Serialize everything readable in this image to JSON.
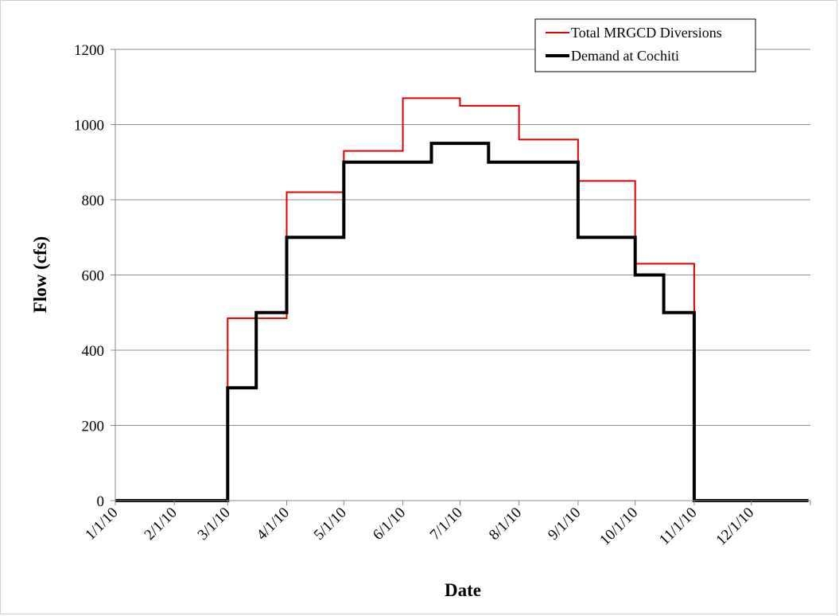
{
  "chart_data": {
    "type": "line",
    "xlabel": "Date",
    "ylabel": "Flow (cfs)",
    "ylim": [
      0,
      1200
    ],
    "yticks": [
      0,
      200,
      400,
      600,
      800,
      1000,
      1200
    ],
    "xticks": [
      "1/1/10",
      "2/1/10",
      "3/1/10",
      "4/1/10",
      "5/1/10",
      "6/1/10",
      "7/1/10",
      "8/1/10",
      "9/1/10",
      "10/1/10",
      "11/1/10",
      "12/1/10"
    ],
    "xlim": [
      "1/1/10",
      "12/31/10"
    ],
    "grid": "horizontal",
    "legend_position": "top-right",
    "series": [
      {
        "name": "Total MRGCD Diversions",
        "color": "#e00000",
        "step": true,
        "points": [
          [
            "1/1/10",
            0
          ],
          [
            "3/1/10",
            0
          ],
          [
            "3/1/10",
            485
          ],
          [
            "4/1/10",
            485
          ],
          [
            "4/1/10",
            820
          ],
          [
            "5/1/10",
            820
          ],
          [
            "5/1/10",
            930
          ],
          [
            "6/1/10",
            930
          ],
          [
            "6/1/10",
            1070
          ],
          [
            "7/1/10",
            1070
          ],
          [
            "7/1/10",
            1050
          ],
          [
            "8/1/10",
            1050
          ],
          [
            "8/1/10",
            960
          ],
          [
            "9/1/10",
            960
          ],
          [
            "9/1/10",
            850
          ],
          [
            "10/1/10",
            850
          ],
          [
            "10/1/10",
            630
          ],
          [
            "11/1/10",
            630
          ],
          [
            "11/1/10",
            0
          ],
          [
            "12/31/10",
            0
          ]
        ]
      },
      {
        "name": "Demand at Cochiti",
        "color": "#000000",
        "step": true,
        "points": [
          [
            "1/1/10",
            0
          ],
          [
            "3/1/10",
            0
          ],
          [
            "3/1/10",
            300
          ],
          [
            "3/16/10",
            300
          ],
          [
            "3/16/10",
            500
          ],
          [
            "4/1/10",
            500
          ],
          [
            "4/1/10",
            700
          ],
          [
            "5/1/10",
            700
          ],
          [
            "5/1/10",
            900
          ],
          [
            "6/16/10",
            900
          ],
          [
            "6/16/10",
            950
          ],
          [
            "7/16/10",
            950
          ],
          [
            "7/16/10",
            900
          ],
          [
            "9/1/10",
            900
          ],
          [
            "9/1/10",
            700
          ],
          [
            "10/1/10",
            700
          ],
          [
            "10/1/10",
            600
          ],
          [
            "10/16/10",
            600
          ],
          [
            "10/16/10",
            500
          ],
          [
            "11/1/10",
            500
          ],
          [
            "11/1/10",
            0
          ],
          [
            "12/31/10",
            0
          ]
        ]
      }
    ]
  }
}
